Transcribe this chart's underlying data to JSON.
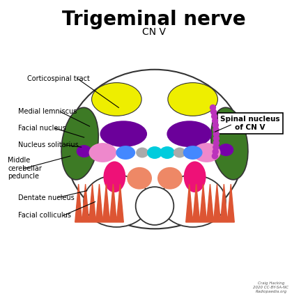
{
  "title": "Trigeminal nerve",
  "subtitle": "CN V",
  "bg_color": "#ffffff",
  "label_color": "#000000",
  "box_label": "Spinal nucleus\nof CN V",
  "colors": {
    "brain_outline": "#333333",
    "green_area": "#3d7a25",
    "yellow_ellipse": "#eeee00",
    "purple_nucleus": "#6b009a",
    "small_purple": "#7700aa",
    "pink_large": "#ee88cc",
    "blue_dot": "#4488ff",
    "cyan_dot": "#00ccdd",
    "gray_dot": "#aaaaaa",
    "hot_pink": "#ee1177",
    "salmon": "#ee8866",
    "dentate_color": "#dd5533",
    "dotted_line": "#bb33bb"
  }
}
